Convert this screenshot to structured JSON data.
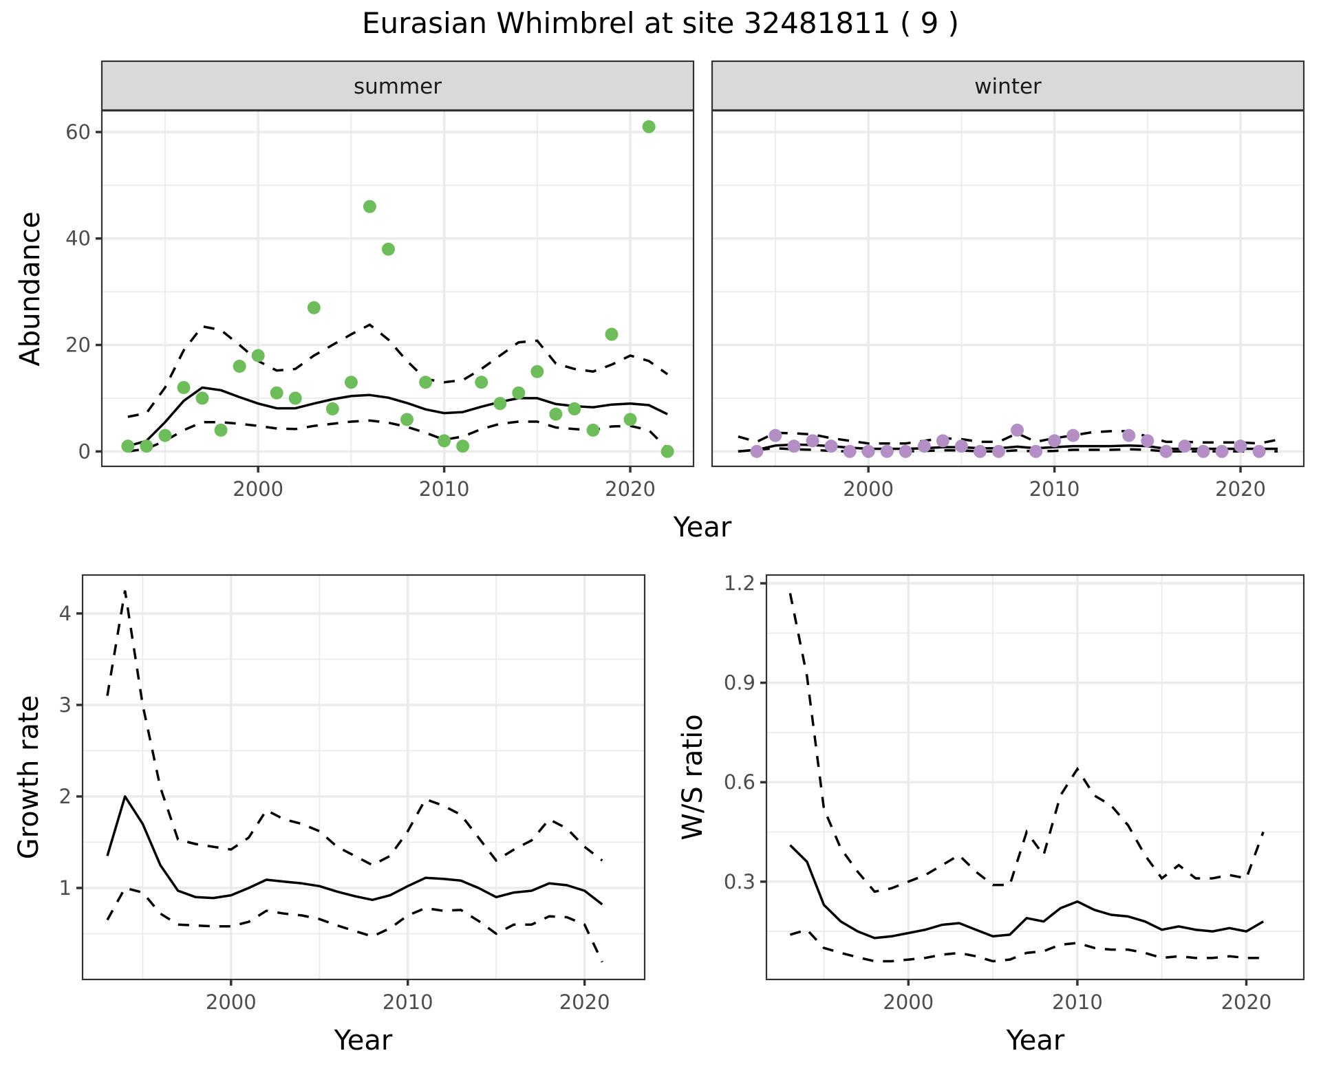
{
  "chart_data": {
    "title": "Eurasian Whimbrel at site 32481811 ( 9 )",
    "colors": {
      "summer": "#6DBE5B",
      "winter": "#B48FC6",
      "lines": "#000000",
      "strip": "#D9D9D9"
    },
    "panels": [
      {
        "id": "abundance",
        "type": "scatter",
        "ylabel": "Abundance",
        "xlabel": "Year",
        "xlim": [
          1991.6,
          2023.4
        ],
        "ylim": [
          -2.8,
          64
        ],
        "xticks": [
          2000,
          2010,
          2020
        ],
        "yticks": [
          0,
          20,
          40,
          60
        ],
        "grid": true,
        "facets": [
          {
            "name": "summer",
            "color": "#6DBE5B",
            "points": {
              "x": [
                1993,
                1994,
                1995,
                1996,
                1997,
                1998,
                1999,
                2000,
                2001,
                2002,
                2003,
                2004,
                2005,
                2006,
                2007,
                2008,
                2009,
                2010,
                2011,
                2012,
                2013,
                2014,
                2015,
                2016,
                2017,
                2018,
                2019,
                2020,
                2021,
                2022
              ],
              "y": [
                1,
                1,
                3,
                12,
                10,
                4,
                16,
                18,
                11,
                10,
                27,
                8,
                13,
                46,
                38,
                6,
                13,
                2,
                1,
                13,
                9,
                11,
                15,
                7,
                8,
                4,
                22,
                6,
                61,
                0
              ]
            },
            "trend": {
              "x": [
                1993,
                1994,
                1995,
                1996,
                1997,
                1998,
                1999,
                2000,
                2001,
                2002,
                2003,
                2004,
                2005,
                2006,
                2007,
                2008,
                2009,
                2010,
                2011,
                2012,
                2013,
                2014,
                2015,
                2016,
                2017,
                2018,
                2019,
                2020,
                2021,
                2022
              ],
              "mean": [
                1,
                2,
                5.5,
                9.5,
                12,
                11.5,
                10.2,
                9,
                8.1,
                8.1,
                9,
                9.8,
                10.4,
                10.6,
                10.1,
                9.1,
                7.9,
                7.2,
                7.4,
                8.4,
                9.3,
                10,
                10,
                8.9,
                8.5,
                8.3,
                8.8,
                9,
                8.7,
                7
              ],
              "upper": [
                6.5,
                7.2,
                12,
                19,
                23.5,
                22.8,
                20,
                17,
                15.2,
                15.5,
                18,
                20,
                22,
                23.8,
                21,
                17,
                13.6,
                13,
                13.4,
                15.5,
                18,
                20.5,
                20.8,
                16.5,
                15.5,
                15,
                16.3,
                18,
                17,
                14.5
              ],
              "lower": [
                0,
                0.5,
                2,
                4,
                5.5,
                5.5,
                5.2,
                4.8,
                4.3,
                4.2,
                4.8,
                5.2,
                5.6,
                5.8,
                5.4,
                4.6,
                3.5,
                2.2,
                2.8,
                4.2,
                5.2,
                5.6,
                5.6,
                4.5,
                4.2,
                4,
                4.7,
                4.8,
                4,
                0.5
              ]
            }
          },
          {
            "name": "winter",
            "color": "#B48FC6",
            "points": {
              "x": [
                1994,
                1995,
                1996,
                1997,
                1998,
                1999,
                2000,
                2001,
                2002,
                2003,
                2004,
                2005,
                2006,
                2007,
                2008,
                2009,
                2010,
                2011,
                2014,
                2015,
                2016,
                2017,
                2018,
                2019,
                2020,
                2021
              ],
              "y": [
                0,
                3,
                1,
                2,
                1,
                0,
                0,
                0,
                0,
                1,
                2,
                1,
                0,
                0,
                4,
                0,
                2,
                3,
                3,
                2,
                0,
                1,
                0,
                0,
                1,
                0
              ]
            },
            "trend": {
              "x": [
                1993,
                1994,
                1995,
                1996,
                1997,
                1998,
                1999,
                2000,
                2001,
                2002,
                2003,
                2004,
                2005,
                2006,
                2007,
                2008,
                2009,
                2010,
                2011,
                2012,
                2013,
                2014,
                2015,
                2016,
                2017,
                2018,
                2019,
                2020,
                2021,
                2022
              ],
              "mean": [
                0,
                0.3,
                1.1,
                1.3,
                1.2,
                1,
                0.7,
                0.5,
                0.5,
                0.5,
                0.6,
                0.8,
                0.8,
                0.6,
                0.6,
                0.9,
                0.6,
                0.8,
                1,
                1,
                1,
                1.1,
                1,
                0.5,
                0.5,
                0.5,
                0.5,
                0.5,
                0.5,
                0.5
              ],
              "upper": [
                2.8,
                1.8,
                3.5,
                3.4,
                3.2,
                2.5,
                2,
                1.5,
                1.5,
                1.5,
                2,
                2.5,
                2.3,
                1.8,
                1.8,
                3.4,
                1.8,
                2.5,
                3,
                3.6,
                3.8,
                3.8,
                2.8,
                1.8,
                1.8,
                1.7,
                1.7,
                1.7,
                1.5,
                2.2
              ],
              "lower": [
                0,
                0.3,
                0.6,
                0.4,
                0.3,
                0.1,
                0,
                0,
                0,
                0,
                0.1,
                0.2,
                0.2,
                0,
                0,
                0.2,
                0,
                0.1,
                0.3,
                0.3,
                0.3,
                0.4,
                0.3,
                0,
                0,
                0,
                0,
                0,
                0,
                0
              ]
            }
          }
        ]
      },
      {
        "id": "growth",
        "type": "line",
        "ylabel": "Growth rate",
        "xlabel": "Year",
        "xlim": [
          1991.6,
          2023.4
        ],
        "ylim": [
          0,
          4.42
        ],
        "xticks": [
          2000,
          2010,
          2020
        ],
        "yticks": [
          1,
          2,
          3,
          4
        ],
        "grid": true,
        "x": [
          1993,
          1994,
          1995,
          1996,
          1997,
          1998,
          1999,
          2000,
          2001,
          2002,
          2003,
          2004,
          2005,
          2006,
          2007,
          2008,
          2009,
          2010,
          2011,
          2012,
          2013,
          2014,
          2015,
          2016,
          2017,
          2018,
          2019,
          2020,
          2021
        ],
        "mean": [
          1.35,
          2.0,
          1.7,
          1.25,
          0.97,
          0.9,
          0.89,
          0.92,
          1.0,
          1.09,
          1.07,
          1.05,
          1.02,
          0.96,
          0.91,
          0.87,
          0.92,
          1.02,
          1.11,
          1.1,
          1.08,
          1.0,
          0.9,
          0.95,
          0.97,
          1.05,
          1.03,
          0.97,
          0.82
        ],
        "upper": [
          3.1,
          4.25,
          3.0,
          2.1,
          1.53,
          1.48,
          1.45,
          1.42,
          1.55,
          1.85,
          1.75,
          1.7,
          1.62,
          1.45,
          1.35,
          1.25,
          1.35,
          1.62,
          1.97,
          1.9,
          1.8,
          1.55,
          1.3,
          1.42,
          1.52,
          1.75,
          1.65,
          1.45,
          1.3
        ],
        "lower": [
          0.65,
          1.0,
          0.95,
          0.72,
          0.6,
          0.59,
          0.58,
          0.58,
          0.63,
          0.75,
          0.72,
          0.7,
          0.66,
          0.59,
          0.53,
          0.47,
          0.56,
          0.7,
          0.78,
          0.75,
          0.76,
          0.64,
          0.5,
          0.6,
          0.6,
          0.69,
          0.68,
          0.6,
          0.19
        ]
      },
      {
        "id": "ratio",
        "type": "line",
        "ylabel": "W/S ratio",
        "xlabel": "Year",
        "xlim": [
          1991.6,
          2023.4
        ],
        "ylim": [
          0.005,
          1.225
        ],
        "xticks": [
          2000,
          2010,
          2020
        ],
        "yticks": [
          "0.3",
          "0.6",
          "0.9",
          "1.2"
        ],
        "grid": true,
        "x": [
          1993,
          1994,
          1995,
          1996,
          1997,
          1998,
          1999,
          2000,
          2001,
          2002,
          2003,
          2004,
          2005,
          2006,
          2007,
          2008,
          2009,
          2010,
          2011,
          2012,
          2013,
          2014,
          2015,
          2016,
          2017,
          2018,
          2019,
          2020,
          2021
        ],
        "mean": [
          0.41,
          0.36,
          0.23,
          0.18,
          0.15,
          0.13,
          0.135,
          0.145,
          0.155,
          0.17,
          0.175,
          0.155,
          0.135,
          0.14,
          0.19,
          0.18,
          0.22,
          0.24,
          0.215,
          0.2,
          0.195,
          0.18,
          0.155,
          0.165,
          0.155,
          0.15,
          0.16,
          0.15,
          0.18
        ],
        "upper": [
          1.17,
          0.92,
          0.52,
          0.4,
          0.33,
          0.27,
          0.28,
          0.3,
          0.32,
          0.35,
          0.38,
          0.33,
          0.29,
          0.29,
          0.45,
          0.38,
          0.56,
          0.64,
          0.56,
          0.53,
          0.47,
          0.38,
          0.31,
          0.35,
          0.31,
          0.31,
          0.32,
          0.31,
          0.45
        ],
        "lower": [
          0.14,
          0.155,
          0.1,
          0.085,
          0.072,
          0.06,
          0.06,
          0.065,
          0.07,
          0.08,
          0.085,
          0.075,
          0.06,
          0.065,
          0.085,
          0.09,
          0.11,
          0.115,
          0.1,
          0.095,
          0.095,
          0.085,
          0.07,
          0.075,
          0.07,
          0.07,
          0.075,
          0.07,
          0.07
        ]
      }
    ]
  }
}
